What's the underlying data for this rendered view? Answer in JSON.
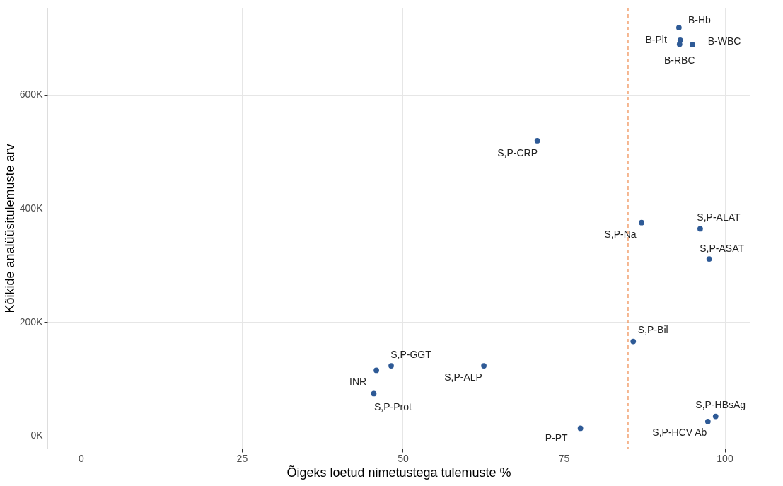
{
  "chart_data": {
    "type": "scatter",
    "xlabel": "Õigeks loetud nimetustega tulemuste %",
    "ylabel": "Kõikide analüüsitulemuste arv",
    "x": [
      92.9,
      93.1,
      93.0,
      95.0,
      70.9,
      87.1,
      96.2,
      97.6,
      85.8,
      48.2,
      45.9,
      62.6,
      45.5,
      77.6,
      98.6,
      97.4
    ],
    "series": [
      {
        "color": "#2e5a96",
        "values": [
          718000,
          696000,
          689000,
          688000,
          519000,
          375000,
          364000,
          311000,
          166000,
          123000,
          115000,
          123000,
          74000,
          13000,
          34000,
          25000
        ]
      }
    ],
    "xlim": [
      -5.2,
      103.9
    ],
    "ylim": [
      -22600,
      753000
    ],
    "xticks": [
      0,
      25,
      50,
      75,
      100
    ],
    "yticks": [
      {
        "value": 0,
        "label": "0K"
      },
      {
        "value": 200000,
        "label": "200K"
      },
      {
        "value": 400000,
        "label": "400K"
      },
      {
        "value": 600000,
        "label": "600K"
      }
    ],
    "ref_lines": [
      {
        "axis": "x",
        "value": 85,
        "color": "#f08a4b",
        "line_style": "dashed"
      }
    ],
    "annotations": [
      {
        "text": "B-Hb",
        "x": 92.9,
        "y": 718000
      },
      {
        "text": "B-Plt",
        "x": 93.1,
        "y": 696000
      },
      {
        "text": "B-RBC",
        "x": 93.0,
        "y": 689000
      },
      {
        "text": "B-WBC",
        "x": 95.0,
        "y": 688000
      },
      {
        "text": "S,P-CRP",
        "x": 70.9,
        "y": 519000
      },
      {
        "text": "S,P-Na",
        "x": 87.1,
        "y": 375000
      },
      {
        "text": "S,P-ALAT",
        "x": 96.2,
        "y": 364000
      },
      {
        "text": "S,P-ASAT",
        "x": 97.6,
        "y": 311000
      },
      {
        "text": "S,P-Bil",
        "x": 85.8,
        "y": 166000
      },
      {
        "text": "S,P-GGT",
        "x": 48.2,
        "y": 123000
      },
      {
        "text": "INR",
        "x": 45.9,
        "y": 115000
      },
      {
        "text": "S,P-ALP",
        "x": 62.6,
        "y": 123000
      },
      {
        "text": "S,P-Prot",
        "x": 45.5,
        "y": 74000
      },
      {
        "text": "P-PT",
        "x": 77.6,
        "y": 13000
      },
      {
        "text": "S,P-HBsAg",
        "x": 98.6,
        "y": 34000
      },
      {
        "text": "S,P-HCV Ab",
        "x": 97.4,
        "y": 25000
      }
    ],
    "grid": true,
    "marker": "circle"
  }
}
